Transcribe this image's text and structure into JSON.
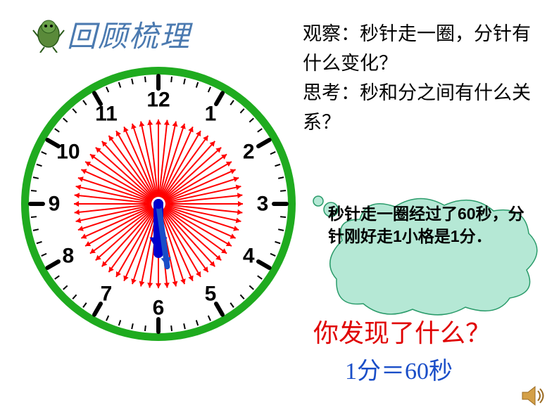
{
  "title": "回顾梳理",
  "question": {
    "line1": "观察：秒针走一圈，分针有什么变化？",
    "line2": "思考：秒和分之间有什么关系？"
  },
  "bubble": "秒针走一圈经过了60秒，分针刚好走1小格是1分．",
  "discover": "你发现了什么？",
  "equation": "1分＝60秒",
  "clock": {
    "type": "clock-diagram",
    "outer_diameter": 400,
    "rim_color": "#1fab1f",
    "rim_width": 10,
    "face_color": "#ffffff",
    "numbers": [
      "12",
      "1",
      "2",
      "3",
      "4",
      "5",
      "6",
      "7",
      "8",
      "9",
      "10",
      "11"
    ],
    "number_color": "#000000",
    "number_fontsize": 30,
    "tick_color": "#000000",
    "hour_tick_len": 18,
    "hour_tick_width": 6,
    "minute_tick_len": 8,
    "minute_tick_width": 2,
    "red_arrow_count": 60,
    "red_arrow_color": "#ff0000",
    "red_arrow_inner_r": 10,
    "red_arrow_outer_r": 120,
    "red_arrow_width": 2,
    "hands": {
      "hour": {
        "angle_deg": 180,
        "length": 70,
        "width": 14,
        "color": "#0000cc"
      },
      "minute": {
        "angle_deg": 172,
        "length": 90,
        "width": 8,
        "color": "#1a4ec8"
      }
    }
  },
  "bubble_style": {
    "fill": "#b5e8d5",
    "stroke": "#2a9b6a",
    "stroke_width": 1.5
  },
  "mascot_colors": {
    "body": "#5a8a3a",
    "outline": "#2a5a1a"
  },
  "speaker_color": "#d4a048"
}
